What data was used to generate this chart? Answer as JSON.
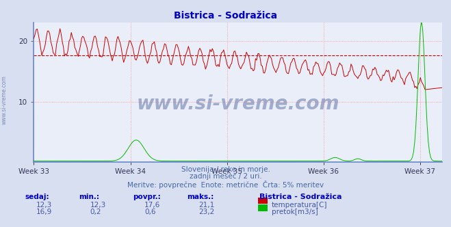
{
  "title": "Bistrica - Sodražica",
  "title_color": "#0000cc",
  "bg_color": "#d8dff0",
  "plot_bg_color": "#eaeef8",
  "grid_color": "#ff8888",
  "x_week_labels": [
    "Week 33",
    "Week 34",
    "Week 35",
    "Week 36",
    "Week 37"
  ],
  "x_week_positions": [
    0,
    84,
    168,
    252,
    336
  ],
  "ylim_temp": [
    0,
    23
  ],
  "y_ticks": [
    10,
    20
  ],
  "temp_color": "#cc0000",
  "flow_color": "#00bb00",
  "avg_line_value": 17.6,
  "avg_line_color": "#cc0000",
  "border_color": "#6688cc",
  "n_points": 360,
  "subtitle_line1": "Slovenija / reke in morje.",
  "subtitle_line2": "zadnji mesec / 2 uri.",
  "subtitle_line3": "Meritve: povprečne  Enote: metrične  Črta: 5% meritev",
  "subtitle_color": "#4466aa",
  "footer_label_color": "#0000cc",
  "footer_value_color": "#4455aa",
  "watermark": "www.si-vreme.com",
  "watermark_color": "#6677aa",
  "left_label": "www.si-vreme.com",
  "left_label_color": "#6677aa",
  "sedaj_temp": "12,3",
  "min_temp": "12,3",
  "povpr_temp": "17,6",
  "maks_temp": "21,1",
  "sedaj_flow": "16,9",
  "min_flow": "0,2",
  "povpr_flow": "0,6",
  "maks_flow": "23,2",
  "station_name": "Bistrica - Sodražica"
}
